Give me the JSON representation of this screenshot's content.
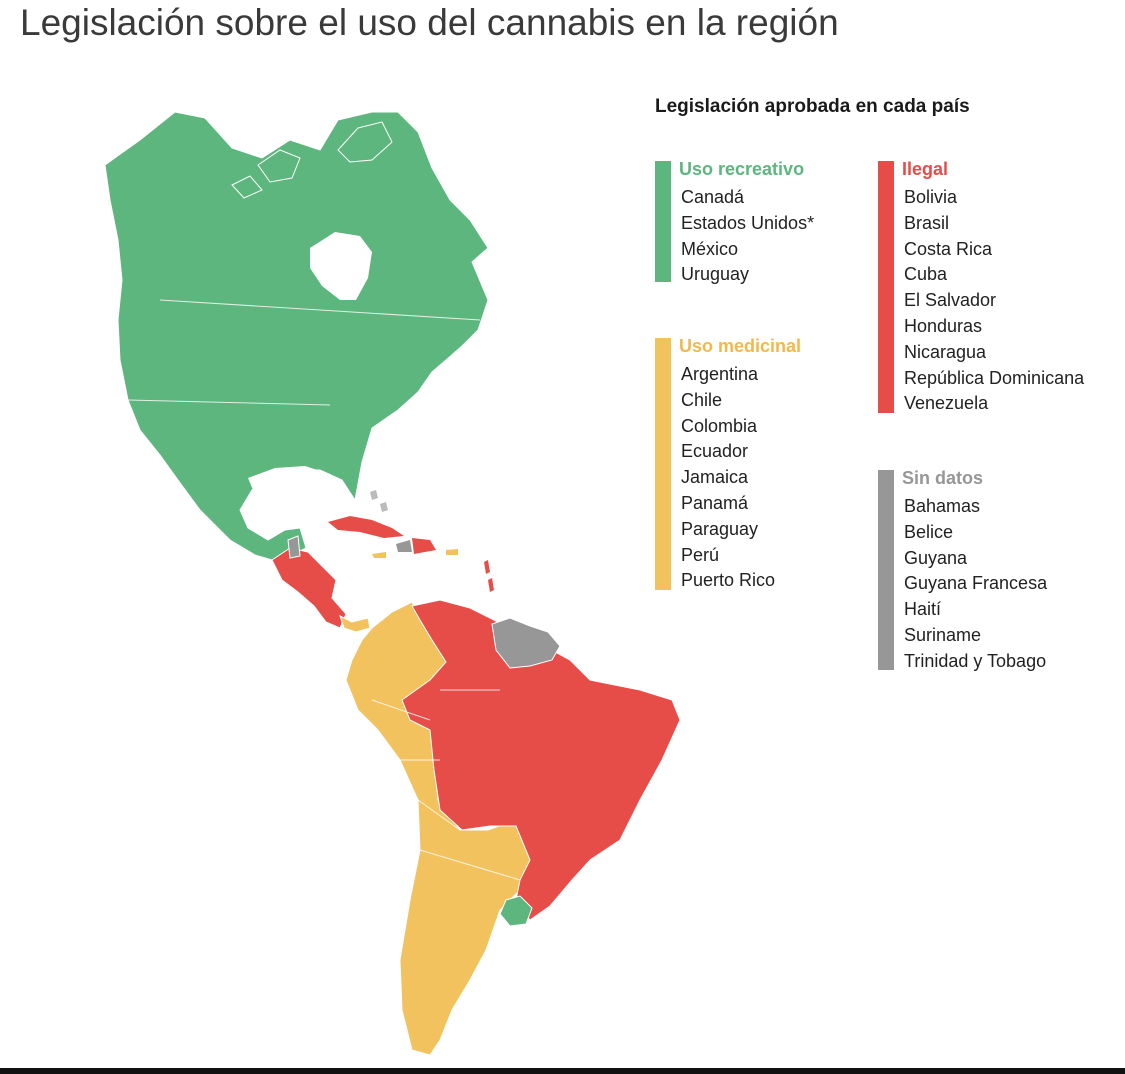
{
  "title": "Legislación sobre el uso del cannabis en la región",
  "legend_title": "Legislación aprobada en cada país",
  "colors": {
    "recreativo": "#5cb67e",
    "medicinal": "#f2c25e",
    "ilegal": "#e64d48",
    "sin_datos": "#979797"
  },
  "groups": {
    "recreativo": {
      "label": "Uso recreativo",
      "countries": [
        "Canadá",
        "Estados Unidos*",
        "México",
        "Uruguay"
      ]
    },
    "medicinal": {
      "label": "Uso medicinal",
      "countries": [
        "Argentina",
        "Chile",
        "Colombia",
        "Ecuador",
        "Jamaica",
        "Panamá",
        "Paraguay",
        "Perú",
        "Puerto Rico"
      ]
    },
    "ilegal": {
      "label": "Ilegal",
      "countries": [
        "Bolivia",
        "Brasil",
        "Costa Rica",
        "Cuba",
        "El Salvador",
        "Honduras",
        "Nicaragua",
        "República Dominicana",
        "Venezuela"
      ]
    },
    "sin_datos": {
      "label": "Sin datos",
      "countries": [
        "Bahamas",
        "Belice",
        "Guyana",
        "Guyana Francesa",
        "Haití",
        "Suriname",
        "Trinidad y Tobago"
      ]
    }
  }
}
